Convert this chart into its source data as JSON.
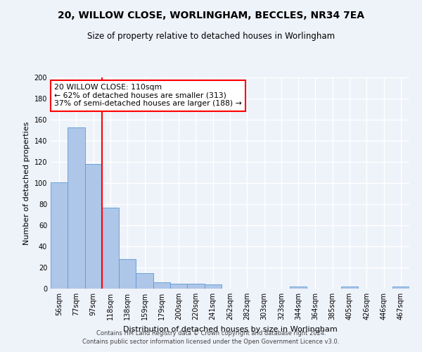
{
  "title": "20, WILLOW CLOSE, WORLINGHAM, BECCLES, NR34 7EA",
  "subtitle": "Size of property relative to detached houses in Worlingham",
  "xlabel": "Distribution of detached houses by size in Worlingham",
  "ylabel": "Number of detached properties",
  "bar_color": "#aec6e8",
  "bar_edge_color": "#5b9bd5",
  "vline_color": "red",
  "categories": [
    "56sqm",
    "77sqm",
    "97sqm",
    "118sqm",
    "138sqm",
    "159sqm",
    "179sqm",
    "200sqm",
    "220sqm",
    "241sqm",
    "262sqm",
    "282sqm",
    "303sqm",
    "323sqm",
    "344sqm",
    "364sqm",
    "385sqm",
    "405sqm",
    "426sqm",
    "446sqm",
    "467sqm"
  ],
  "values": [
    101,
    153,
    118,
    77,
    28,
    15,
    6,
    5,
    5,
    4,
    0,
    0,
    0,
    0,
    2,
    0,
    0,
    2,
    0,
    0,
    2
  ],
  "ylim": [
    0,
    200
  ],
  "yticks": [
    0,
    20,
    40,
    60,
    80,
    100,
    120,
    140,
    160,
    180,
    200
  ],
  "annotation_text": "20 WILLOW CLOSE: 110sqm\n← 62% of detached houses are smaller (313)\n37% of semi-detached houses are larger (188) →",
  "annotation_box_color": "white",
  "annotation_box_edgecolor": "red",
  "footer_line1": "Contains HM Land Registry data © Crown copyright and database right 2024.",
  "footer_line2": "Contains public sector information licensed under the Open Government Licence v3.0.",
  "background_color": "#eef2f9",
  "grid_color": "white",
  "vline_bar_index": 2
}
